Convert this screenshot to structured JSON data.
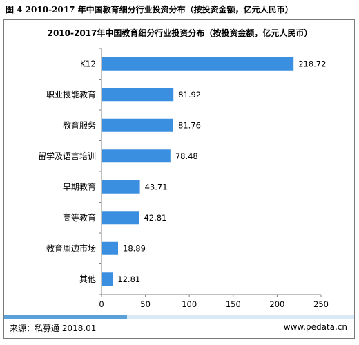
{
  "caption": "图 4 2010-2017 年中国教育细分行业投资分布（按投资金额，亿元人民币）",
  "footer": {
    "source": "来源：私募通 2018.01",
    "site": "www.pedata.cn"
  },
  "colors": {
    "bar": "#3b8fe0",
    "axis": "#7f7f7f",
    "bottom_rule": "#d9e9f6",
    "bottom_rule_accent": "#5aa0d9"
  },
  "chart_data": {
    "type": "bar",
    "orientation": "horizontal",
    "title": "2010-2017年中国教育细分行业投资分布（按投资金额，亿元人民币）",
    "categories": [
      "K12",
      "职业技能教育",
      "教育服务",
      "留学及语言培训",
      "早期教育",
      "高等教育",
      "教育周边市场",
      "其他"
    ],
    "values": [
      218.72,
      81.92,
      81.76,
      78.48,
      43.71,
      42.81,
      18.89,
      12.81
    ],
    "value_labels": [
      "218.72",
      "81.92",
      "81.76",
      "78.48",
      "43.71",
      "42.81",
      "18.89",
      "12.81"
    ],
    "xlim": [
      0,
      250
    ],
    "xticks": [
      0,
      50,
      100,
      150,
      200,
      250
    ],
    "xtick_labels": [
      "0",
      "50",
      "100",
      "150",
      "200",
      "250"
    ],
    "xlabel": "",
    "ylabel": "",
    "grid": false,
    "legend": "none"
  }
}
